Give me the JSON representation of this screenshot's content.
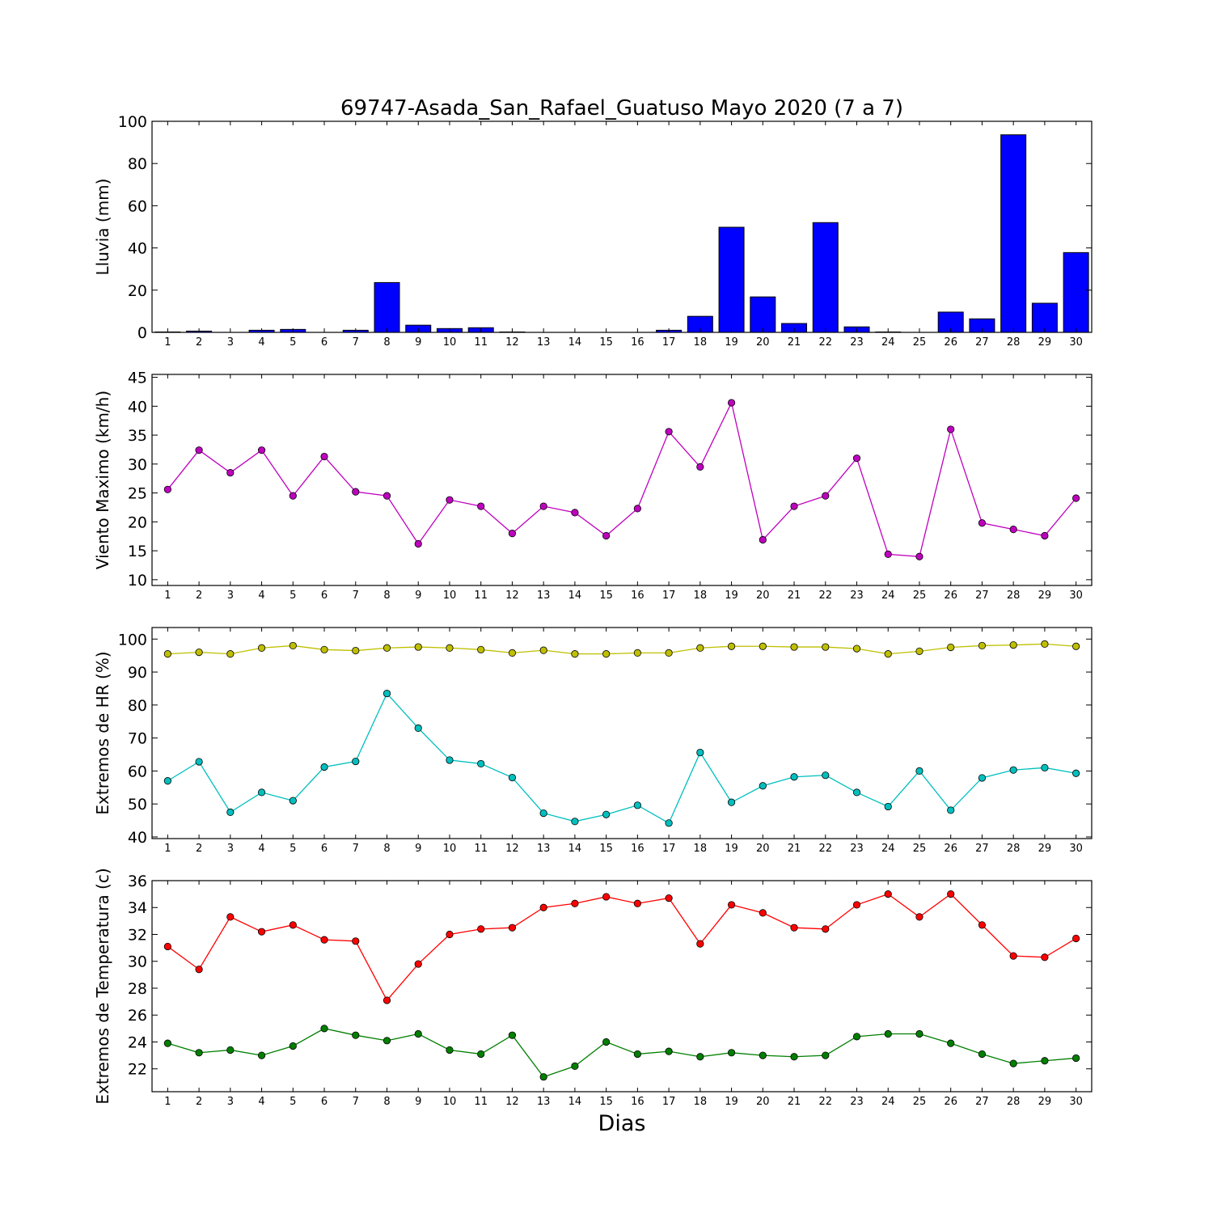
{
  "chart_data": {
    "title": "69747-Asada_San_Rafael_Guatuso Mayo 2020  (7 a 7)",
    "xlabel": "Dias",
    "days": [
      1,
      2,
      3,
      4,
      5,
      6,
      7,
      8,
      9,
      10,
      11,
      12,
      13,
      14,
      15,
      16,
      17,
      18,
      19,
      20,
      21,
      22,
      23,
      24,
      25,
      26,
      27,
      28,
      29,
      30
    ],
    "panels": [
      {
        "type": "bar",
        "ylabel": "Lluvia (mm)",
        "ylim": [
          0,
          100
        ],
        "yticks": [
          0,
          20,
          40,
          60,
          80,
          100
        ],
        "series": [
          {
            "color": "#0000ff",
            "values": [
              0.2,
              0.6,
              0.0,
              1.0,
              1.4,
              0.0,
              1.0,
              23.6,
              3.4,
              1.8,
              2.2,
              0.2,
              0.0,
              0.0,
              0.0,
              0.0,
              1.0,
              7.6,
              49.8,
              16.8,
              4.2,
              52.0,
              2.6,
              0.2,
              0.0,
              9.6,
              6.4,
              93.6,
              13.8,
              37.8
            ]
          }
        ]
      },
      {
        "type": "line",
        "ylabel": "Viento Maximo (km/h)",
        "ylim": [
          9,
          45.5
        ],
        "yticks": [
          10,
          15,
          20,
          25,
          30,
          35,
          40,
          45
        ],
        "series": [
          {
            "color": "#bf00bf",
            "values": [
              25.6,
              32.4,
              28.5,
              32.4,
              24.5,
              31.3,
              25.2,
              24.5,
              16.2,
              23.8,
              22.7,
              18.0,
              22.7,
              21.6,
              17.6,
              22.3,
              35.6,
              29.5,
              40.6,
              16.9,
              22.7,
              24.5,
              31.0,
              14.4,
              14.0,
              36.0,
              19.8,
              18.7,
              17.6,
              24.1
            ]
          }
        ]
      },
      {
        "type": "line",
        "ylabel": "Extremos de HR (%)",
        "ylim": [
          39.5,
          103.5
        ],
        "yticks": [
          40,
          50,
          60,
          70,
          80,
          90,
          100
        ],
        "series": [
          {
            "color": "#bfbf00",
            "values": [
              95.5,
              96.0,
              95.5,
              97.3,
              98.0,
              96.8,
              96.5,
              97.3,
              97.6,
              97.3,
              96.8,
              95.8,
              96.6,
              95.5,
              95.5,
              95.8,
              95.8,
              97.3,
              97.8,
              97.8,
              97.6,
              97.6,
              97.1,
              95.5,
              96.3,
              97.5,
              98.0,
              98.2,
              98.5,
              97.8
            ]
          },
          {
            "color": "#00bfbf",
            "values": [
              57.0,
              62.8,
              47.5,
              53.5,
              51.0,
              61.2,
              62.9,
              83.5,
              73.0,
              63.3,
              62.2,
              58.0,
              47.2,
              44.7,
              46.8,
              49.6,
              44.2,
              65.6,
              50.5,
              55.5,
              58.2,
              58.7,
              53.5,
              49.2,
              60.0,
              48.1,
              57.9,
              60.3,
              61.0,
              59.3
            ]
          }
        ]
      },
      {
        "type": "line",
        "ylabel": "Extremos de Temperatura (c)",
        "ylim": [
          20.3,
          36
        ],
        "yticks": [
          22,
          24,
          26,
          28,
          30,
          32,
          34,
          36
        ],
        "series": [
          {
            "color": "#ff0000",
            "values": [
              31.1,
              29.4,
              33.3,
              32.2,
              32.7,
              31.6,
              31.5,
              27.1,
              29.8,
              32.0,
              32.4,
              32.5,
              34.0,
              34.3,
              34.8,
              34.3,
              34.7,
              31.3,
              34.2,
              33.6,
              32.5,
              32.4,
              34.2,
              35.0,
              33.3,
              35.0,
              32.7,
              30.4,
              30.3,
              31.7
            ]
          },
          {
            "color": "#007f00",
            "values": [
              23.9,
              23.2,
              23.4,
              23.0,
              23.7,
              25.0,
              24.5,
              24.1,
              24.6,
              23.4,
              23.1,
              24.5,
              21.4,
              22.2,
              24.0,
              23.1,
              23.3,
              22.9,
              23.2,
              23.0,
              22.9,
              23.0,
              24.4,
              24.6,
              24.6,
              23.9,
              23.1,
              22.4,
              22.6,
              22.8
            ]
          }
        ]
      }
    ]
  }
}
